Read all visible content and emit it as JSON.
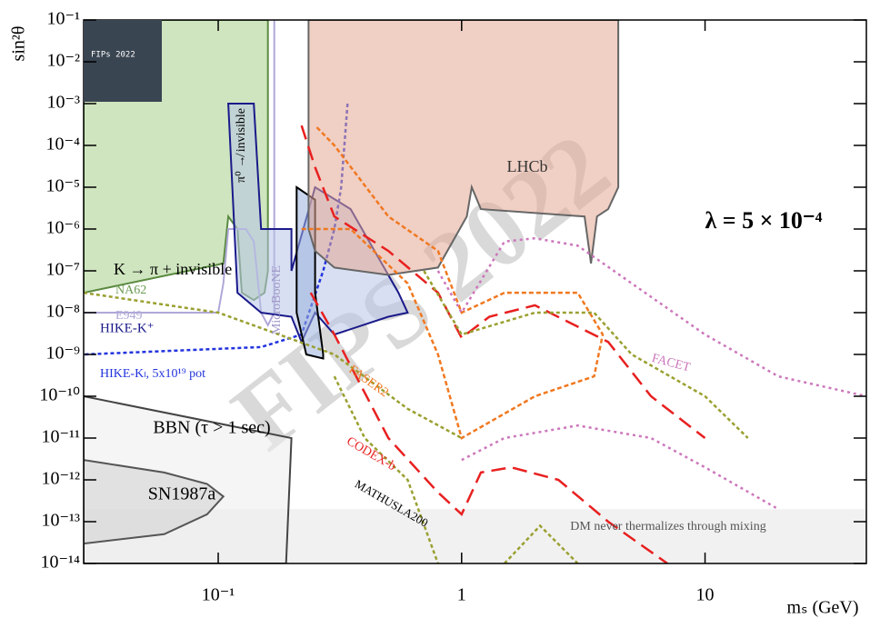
{
  "chart_data": {
    "type": "exclusion",
    "x_label": "mₛ (GeV)",
    "y_label": "sin²θ",
    "log_x": true,
    "log_y": true,
    "xlim": [
      0.028,
      46
    ],
    "ylim": [
      1e-14,
      0.1
    ],
    "xticks": [
      {
        "value": 0.1,
        "label": "10⁻¹"
      },
      1,
      10
    ],
    "yticks": [
      {
        "value": 1e-14,
        "label": "10⁻¹⁴"
      },
      {
        "value": 1e-13,
        "label": "10⁻¹³"
      },
      {
        "value": 1e-12,
        "label": "10⁻¹²"
      },
      {
        "value": 1e-11,
        "label": "10⁻¹¹"
      },
      {
        "value": 1e-10,
        "label": "10⁻¹⁰"
      },
      {
        "value": 1e-09,
        "label": "10⁻⁹"
      },
      {
        "value": 1e-08,
        "label": "10⁻⁸"
      },
      {
        "value": 1e-07,
        "label": "10⁻⁷"
      },
      {
        "value": 1e-06,
        "label": "10⁻⁶"
      },
      {
        "value": 1e-05,
        "label": "10⁻⁵"
      },
      {
        "value": 0.0001,
        "label": "10⁻⁴"
      },
      {
        "value": 0.001,
        "label": "10⁻³"
      },
      {
        "value": 0.01,
        "label": "10⁻²"
      },
      {
        "value": 0.1,
        "label": "10⁻¹"
      }
    ],
    "regions": [
      {
        "fill": "#e6e6e6",
        "stroke": "none",
        "closed": true,
        "x": [
          0.028,
          46,
          46,
          0.028
        ],
        "y": [
          2e-13,
          2e-13,
          1e-14,
          1e-14
        ]
      },
      {
        "fill": "#ececec",
        "stroke": "#444444",
        "closed": true,
        "x": [
          0.028,
          0.2,
          0.19,
          0.028
        ],
        "y": [
          1e-10,
          1e-11,
          1e-14,
          1e-14
        ]
      },
      {
        "fill": "#d0d0d0",
        "stroke": "#555555",
        "closed": true,
        "x": [
          0.028,
          0.06,
          0.09,
          0.105,
          0.09,
          0.06,
          0.028
        ],
        "y": [
          3e-12,
          1.5e-12,
          8e-13,
          4e-13,
          1.5e-13,
          5e-14,
          3e-14
        ]
      },
      {
        "fill": "#a8cf8a",
        "stroke": "#5a8a40",
        "closed": true,
        "x": [
          0.028,
          0.16,
          0.16,
          0.155,
          0.14,
          0.125,
          0.12,
          0.11,
          0.105,
          0.028
        ],
        "y": [
          0.1,
          0.1,
          1e-07,
          3e-08,
          2e-08,
          3e-08,
          1e-06,
          2e-06,
          1.5e-07,
          3e-08
        ]
      },
      {
        "fill": "none",
        "stroke": "#b0a8d8",
        "closed": false,
        "x": [
          0.028,
          0.1,
          0.105,
          0.11,
          0.13,
          0.14,
          0.15,
          0.16,
          0.17,
          0.17
        ],
        "y": [
          1e-08,
          1e-08,
          5e-08,
          1e-06,
          1e-06,
          5e-07,
          1e-08,
          5e-09,
          1e-08,
          0.1
        ]
      },
      {
        "fill": "#b8c4e8",
        "stroke": "#1a1a8a",
        "closed": true,
        "x": [
          0.11,
          0.14,
          0.15,
          0.2,
          0.2,
          0.25,
          0.35,
          0.55,
          0.6,
          0.5,
          0.3,
          0.25,
          0.22,
          0.2,
          0.15,
          0.12
        ],
        "y": [
          0.001,
          0.001,
          1e-06,
          1e-06,
          1e-07,
          1e-05,
          3e-06,
          3e-08,
          1e-08,
          8e-09,
          3e-09,
          1e-08,
          2e-09,
          8e-09,
          1e-08,
          3e-08
        ]
      },
      {
        "fill": "none",
        "stroke": "#2233dd",
        "dash": "4 3",
        "closed": false,
        "x": [
          0.34,
          0.32,
          0.3,
          0.27,
          0.22,
          0.15,
          0.028
        ],
        "y": [
          0.001,
          1e-05,
          1e-06,
          1e-07,
          3e-09,
          1.5e-09,
          1e-09
        ]
      },
      {
        "fill": "#9ab0dd",
        "stroke": "#000000",
        "closed": true,
        "x": [
          0.21,
          0.25,
          0.25,
          0.27,
          0.27,
          0.23,
          0.21
        ],
        "y": [
          1e-05,
          5e-06,
          3e-08,
          1e-09,
          8e-10,
          1e-09,
          1e-08
        ]
      },
      {
        "fill": "#e3a894",
        "stroke": "#666666",
        "closed": true,
        "x": [
          0.235,
          4.4,
          4.4,
          4.0,
          3.6,
          3.4,
          3.2,
          1.2,
          1.1,
          1.05,
          0.8,
          0.5,
          0.3,
          0.25,
          0.235
        ],
        "y": [
          0.1,
          0.1,
          1e-05,
          3e-06,
          2e-06,
          1.5e-07,
          2e-06,
          3e-06,
          1e-05,
          2e-06,
          1.2e-07,
          8e-08,
          1.2e-07,
          3e-07,
          1e-06
        ]
      },
      {
        "fill": "none",
        "stroke": "#f07820",
        "dash": "5 3",
        "closed": false,
        "x": [
          0.22,
          0.35,
          0.6,
          0.8,
          1.0,
          2,
          3.5,
          3.8,
          3.0,
          1.5,
          1.0,
          0.8,
          0.5,
          0.3,
          0.25
        ],
        "y": [
          1e-06,
          1e-06,
          5e-08,
          1e-09,
          1e-11,
          1e-10,
          3e-10,
          3e-09,
          3e-08,
          3e-08,
          1e-08,
          3e-07,
          2e-06,
          0.0001,
          0.0003
        ]
      },
      {
        "fill": "none",
        "stroke": "#e82020",
        "dash": "16 8",
        "closed": false,
        "x": [
          0.22,
          0.25,
          0.3,
          0.5,
          0.8,
          1.0,
          1.3,
          2,
          4,
          6,
          10
        ],
        "y": [
          0.0003,
          3e-05,
          2e-06,
          3e-07,
          3e-08,
          2.5e-09,
          8e-09,
          1.5e-08,
          2e-09,
          1e-10,
          1e-11
        ]
      },
      {
        "fill": "none",
        "stroke": "#e82020",
        "dash": "16 8",
        "closed": false,
        "x": [
          0.24,
          0.3,
          0.5,
          0.8,
          1.0,
          1.2,
          1.6,
          2.5,
          4,
          7
        ],
        "y": [
          3e-08,
          3e-09,
          1e-11,
          5e-13,
          1.5e-13,
          1.5e-12,
          2e-12,
          1e-12,
          1e-13,
          1e-14
        ]
      },
      {
        "fill": "none",
        "stroke": "#9aa030",
        "dash": "4 3",
        "closed": false,
        "x": [
          0.028,
          0.1,
          0.3,
          0.6,
          1.0
        ],
        "y": [
          3e-08,
          1e-08,
          1e-09,
          5e-11,
          1e-11
        ]
      },
      {
        "fill": "none",
        "stroke": "#9aa030",
        "dash": "4 3",
        "closed": false,
        "x": [
          0.7,
          1.0,
          2,
          3.5,
          5,
          10,
          15
        ],
        "y": [
          1e-07,
          3e-09,
          1e-08,
          1e-08,
          1e-09,
          1e-10,
          1e-11
        ]
      },
      {
        "fill": "none",
        "stroke": "#9aa030",
        "dash": "4 3",
        "closed": false,
        "x": [
          0.3,
          0.4,
          0.6,
          0.8
        ],
        "y": [
          3e-10,
          1e-11,
          1e-12,
          1e-14
        ]
      },
      {
        "fill": "none",
        "stroke": "#9aa030",
        "dash": "4 3",
        "closed": false,
        "x": [
          1.5,
          2.1,
          3
        ],
        "y": [
          1e-14,
          8e-14,
          1e-14
        ]
      },
      {
        "fill": "none",
        "stroke": "#cc77bb",
        "dash": "3 4",
        "closed": false,
        "x": [
          0.8,
          1.0,
          1.5,
          2,
          3,
          5,
          10,
          20,
          46
        ],
        "y": [
          1e-07,
          1e-08,
          5e-07,
          6e-07,
          4e-07,
          5e-08,
          3e-09,
          3e-10,
          1e-10
        ]
      },
      {
        "fill": "none",
        "stroke": "#cc77bb",
        "dash": "3 4",
        "closed": false,
        "x": [
          1.0,
          1.5,
          3,
          6,
          10,
          20
        ],
        "y": [
          3e-12,
          1e-11,
          2e-11,
          1e-11,
          2e-12,
          2e-13
        ]
      }
    ],
    "annotations": [
      {
        "text": "LHCb",
        "color": "#333333"
      },
      {
        "text": "K → π + invisible",
        "color": "#000000"
      },
      {
        "text": "NA62",
        "color": "#6a9a50"
      },
      {
        "text": "E949",
        "color": "#b0a8d8"
      },
      {
        "text": "HIKE-K⁺",
        "color": "#1a1a8a"
      },
      {
        "text": "HIKE-Kₗ, 5x10¹⁹ pot",
        "color": "#2233dd"
      },
      {
        "text": "π⁰ ↛ invisible",
        "color": "#000000"
      },
      {
        "text": "MicroBooNE",
        "color": "#a098c8"
      },
      {
        "text": "FASER2",
        "color": "#f07820"
      },
      {
        "text": "CODEX-b",
        "color": "#e82020"
      },
      {
        "text": "MATHUSLA200",
        "color": "#000000"
      },
      {
        "text": "FACET",
        "color": "#cc77bb"
      },
      {
        "text": "BBN (τ > 1 sec)",
        "color": "#000000"
      },
      {
        "text": "SN1987a",
        "color": "#000000"
      },
      {
        "text": "DM never thermalizes through mixing",
        "color": "#555555"
      },
      {
        "text": "λ = 5 × 10⁻⁴",
        "color": "#000000"
      }
    ],
    "watermark": "FIPS 2022",
    "logo_text": "FIPs 2022"
  }
}
